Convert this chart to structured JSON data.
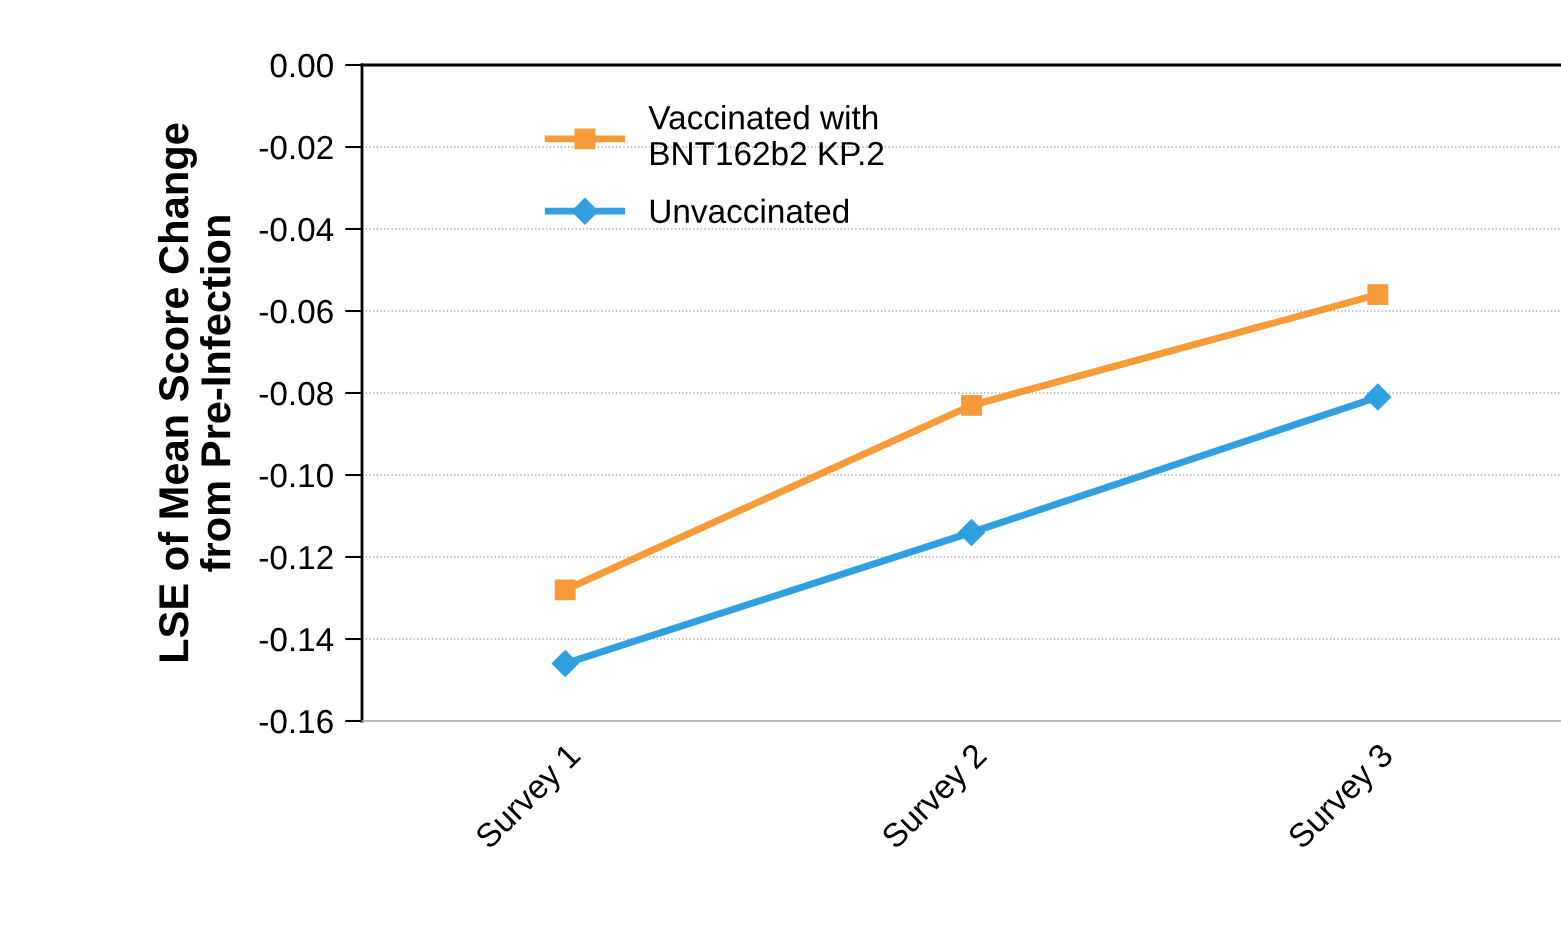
{
  "chart_data": {
    "type": "line",
    "ylabel": "LSE of Mean Score Change\nfrom Pre-Infection",
    "categories": [
      "Survey 1",
      "Survey 2",
      "Survey 3"
    ],
    "series": [
      {
        "name": "Vaccinated with\nBNT162b2 KP.2",
        "color": "#f79a38",
        "marker": "square",
        "values": [
          -0.128,
          -0.083,
          -0.056
        ]
      },
      {
        "name": "Unvaccinated",
        "color": "#2f9fe0",
        "marker": "diamond",
        "values": [
          -0.146,
          -0.114,
          -0.081
        ]
      }
    ],
    "ylim": [
      -0.16,
      0.0
    ],
    "yticks": [
      {
        "value": 0.0,
        "label": "0.00"
      },
      {
        "value": -0.02,
        "label": "-0.02"
      },
      {
        "value": -0.04,
        "label": "-0.04"
      },
      {
        "value": -0.06,
        "label": "-0.06"
      },
      {
        "value": -0.08,
        "label": "-0.08"
      },
      {
        "value": -0.1,
        "label": "-0.10"
      },
      {
        "value": -0.12,
        "label": "-0.12"
      },
      {
        "value": -0.14,
        "label": "-0.14"
      },
      {
        "value": -0.16,
        "label": "-0.16"
      }
    ],
    "grid": "y",
    "legend": "top left",
    "line_style": "solid"
  }
}
